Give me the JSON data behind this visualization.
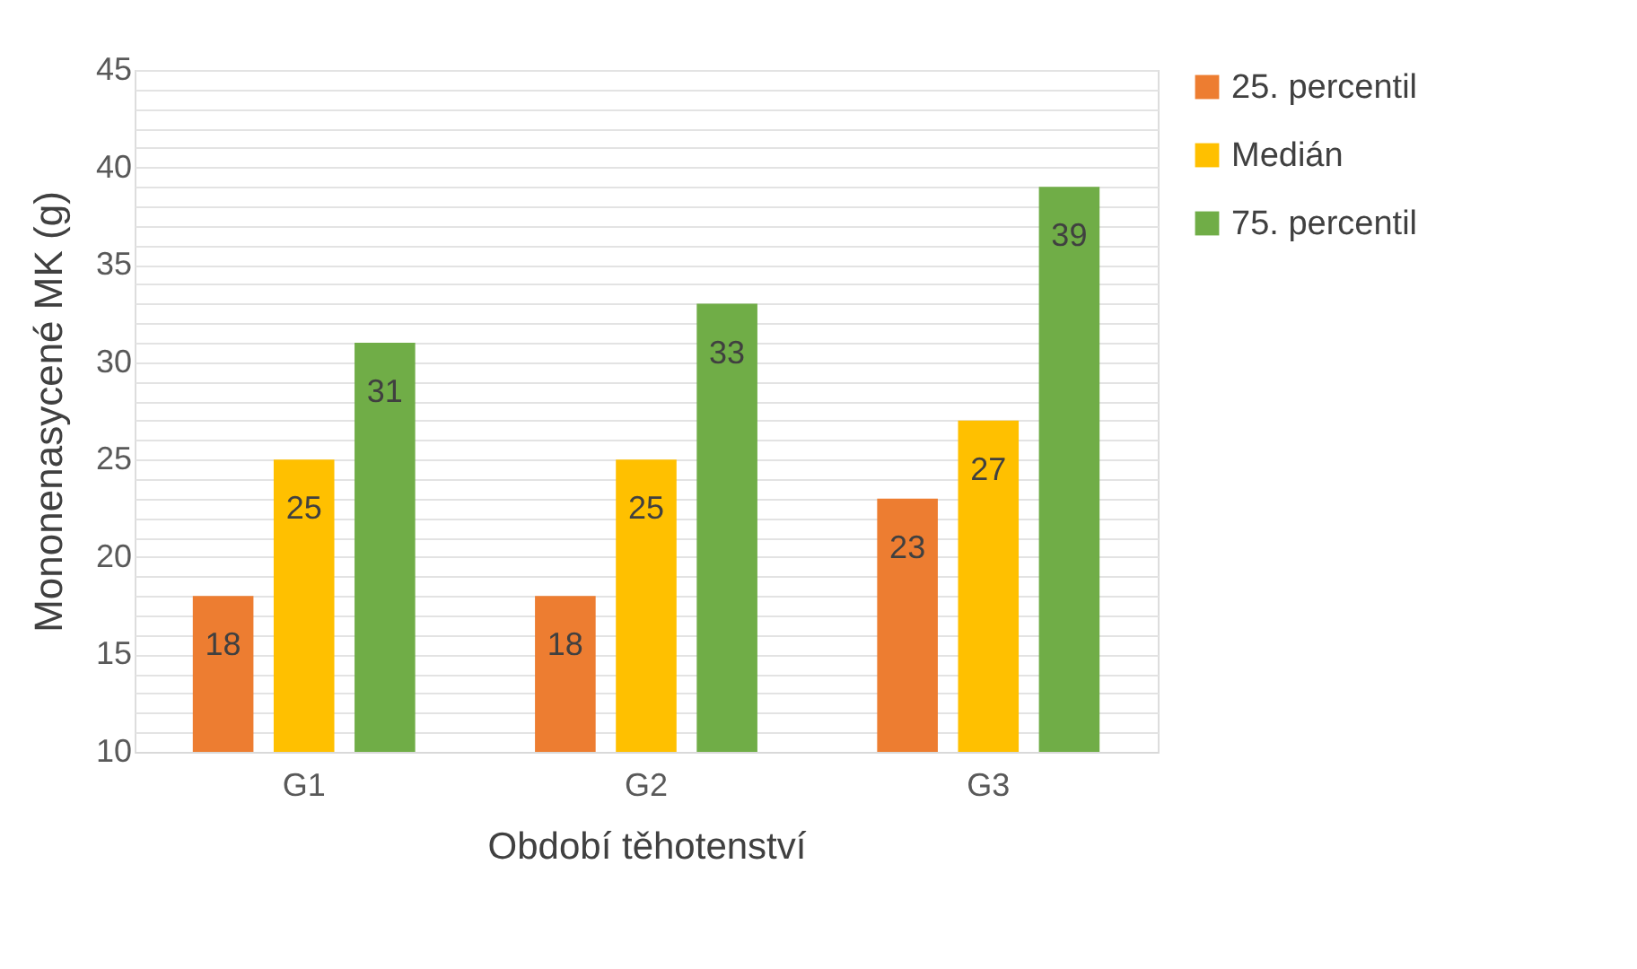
{
  "chart_data": {
    "type": "bar",
    "categories": [
      "G1",
      "G2",
      "G3"
    ],
    "series": [
      {
        "name": "25. percentil",
        "color": "#ed7d31",
        "values": [
          18,
          18,
          23
        ]
      },
      {
        "name": "Medián",
        "color": "#ffc000",
        "values": [
          25,
          25,
          27
        ]
      },
      {
        "name": "75. percentil",
        "color": "#70ad47",
        "values": [
          31,
          33,
          39
        ]
      }
    ],
    "xlabel": "Období těhotenství",
    "ylabel": "Mononenasycené MK (g)",
    "ylim": [
      10,
      45
    ],
    "yticks": [
      10,
      {
        "value": 11,
        "label": null
      },
      {
        "value": 12,
        "label": null
      },
      {
        "value": 13,
        "label": null
      },
      {
        "value": 14,
        "label": null
      },
      15,
      {
        "value": 16,
        "label": null
      },
      {
        "value": 17,
        "label": null
      },
      {
        "value": 18,
        "label": null
      },
      {
        "value": 19,
        "label": null
      },
      20,
      {
        "value": 21,
        "label": null
      },
      {
        "value": 22,
        "label": null
      },
      {
        "value": 23,
        "label": null
      },
      {
        "value": 24,
        "label": null
      },
      25,
      {
        "value": 26,
        "label": null
      },
      {
        "value": 27,
        "label": null
      },
      {
        "value": 28,
        "label": null
      },
      {
        "value": 29,
        "label": null
      },
      30,
      {
        "value": 31,
        "label": null
      },
      {
        "value": 32,
        "label": null
      },
      {
        "value": 33,
        "label": null
      },
      {
        "value": 34,
        "label": null
      },
      35,
      {
        "value": 36,
        "label": null
      },
      {
        "value": 37,
        "label": null
      },
      {
        "value": 38,
        "label": null
      },
      {
        "value": 39,
        "label": null
      },
      40,
      {
        "value": 41,
        "label": null
      },
      {
        "value": 42,
        "label": null
      },
      {
        "value": 43,
        "label": null
      },
      {
        "value": 44,
        "label": null
      },
      45
    ],
    "grid": true,
    "legend": "right",
    "data_labels": true
  }
}
